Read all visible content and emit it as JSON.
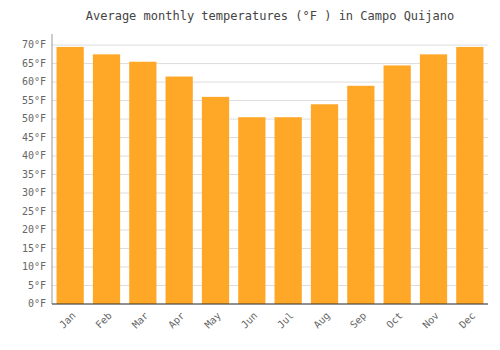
{
  "chart_data": {
    "type": "bar",
    "title": "Average monthly temperatures (°F ) in Campo Quijano",
    "categories": [
      "Jan",
      "Feb",
      "Mar",
      "Apr",
      "May",
      "Jun",
      "Jul",
      "Aug",
      "Sep",
      "Oct",
      "Nov",
      "Dec"
    ],
    "values": [
      69.5,
      67.5,
      65.5,
      61.5,
      56.0,
      50.5,
      50.5,
      54.0,
      59.0,
      64.5,
      67.5,
      69.5
    ],
    "color": "#FFA726",
    "ylim": [
      0,
      73
    ],
    "yticks": [
      {
        "value": 0,
        "label": "0°F"
      },
      {
        "value": 5,
        "label": "5°F"
      },
      {
        "value": 10,
        "label": "10°F"
      },
      {
        "value": 15,
        "label": "15°F"
      },
      {
        "value": 20,
        "label": "20°F"
      },
      {
        "value": 25,
        "label": "25°F"
      },
      {
        "value": 30,
        "label": "30°F"
      },
      {
        "value": 35,
        "label": "35°F"
      },
      {
        "value": 40,
        "label": "40°F"
      },
      {
        "value": 45,
        "label": "45°F"
      },
      {
        "value": 50,
        "label": "50°F"
      },
      {
        "value": 55,
        "label": "55°F"
      },
      {
        "value": 60,
        "label": "60°F"
      },
      {
        "value": 65,
        "label": "65°F"
      },
      {
        "value": 70,
        "label": "70°F"
      }
    ],
    "grid": true
  }
}
